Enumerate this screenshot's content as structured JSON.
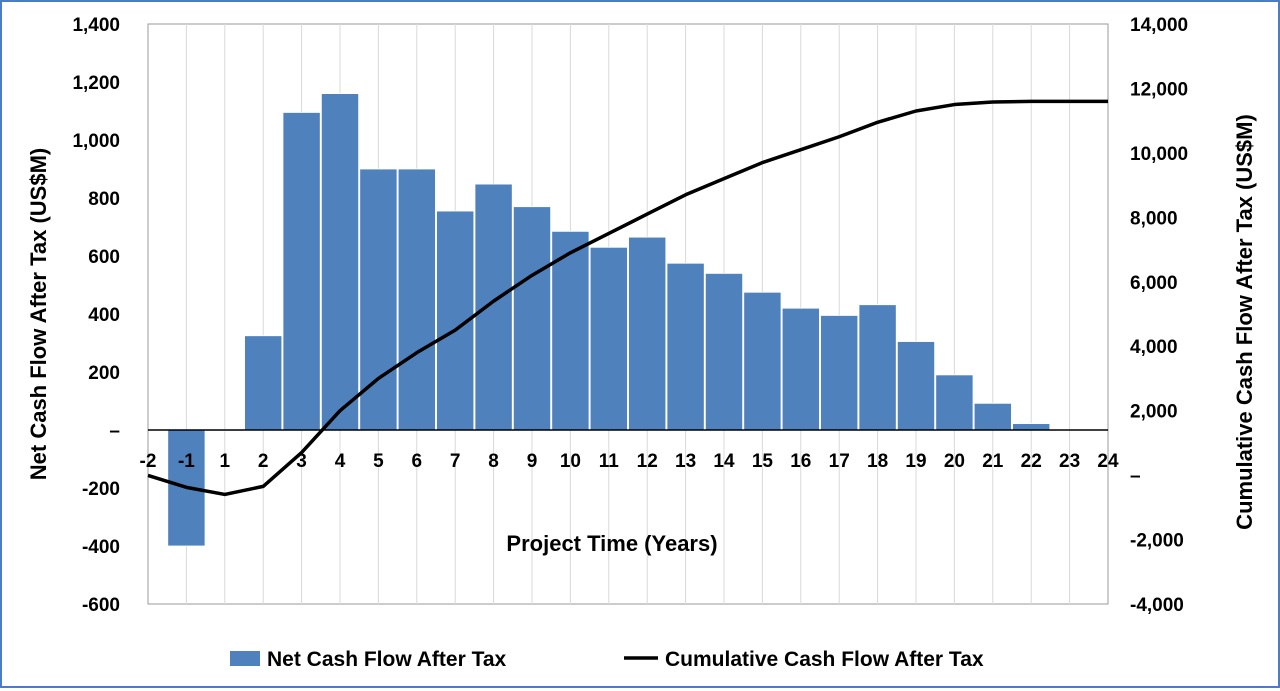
{
  "chart_data": {
    "type": "bar+line",
    "title": "",
    "xlabel": "Project Time (Years)",
    "ylabel": "Net Cash Flow After Tax (US$M)",
    "y2label": "Cumulative Cash Flow After Tax (US$M)",
    "x_ticks": [
      "-2",
      "-1",
      "1",
      "2",
      "3",
      "4",
      "5",
      "6",
      "7",
      "8",
      "9",
      "10",
      "11",
      "12",
      "13",
      "14",
      "15",
      "16",
      "17",
      "18",
      "19",
      "20",
      "21",
      "22",
      "23",
      "24"
    ],
    "y_ticks": [
      "1,400",
      "1,200",
      "1,000",
      "800",
      "600",
      "400",
      "200",
      "–",
      "-200",
      "-400",
      "-600"
    ],
    "y2_ticks": [
      "14,000",
      "12,000",
      "10,000",
      "8,000",
      "6,000",
      "4,000",
      "2,000",
      "–",
      "-2,000",
      "-4,000"
    ],
    "ylim": [
      -600,
      1400
    ],
    "y2lim": [
      -4000,
      14000
    ],
    "bar_series": {
      "name": "Net Cash Flow After Tax",
      "color": "#4f81bd",
      "values": [
        0,
        -400,
        -3,
        325,
        1095,
        1160,
        900,
        900,
        755,
        848,
        770,
        685,
        630,
        665,
        575,
        540,
        475,
        420,
        395,
        432,
        305,
        190,
        92,
        22,
        0,
        0
      ]
    },
    "line_series": {
      "name": "Cumulative Cash Flow After Tax",
      "color": "#000000",
      "values": [
        -10,
        -380,
        -600,
        -350,
        700,
        2000,
        3000,
        3800,
        4500,
        5400,
        6200,
        6900,
        7500,
        8100,
        8700,
        9200,
        9700,
        10100,
        10500,
        10950,
        11300,
        11500,
        11580,
        11600,
        11600,
        11600
      ]
    },
    "legend_position": "bottom",
    "grid": "vertical"
  }
}
